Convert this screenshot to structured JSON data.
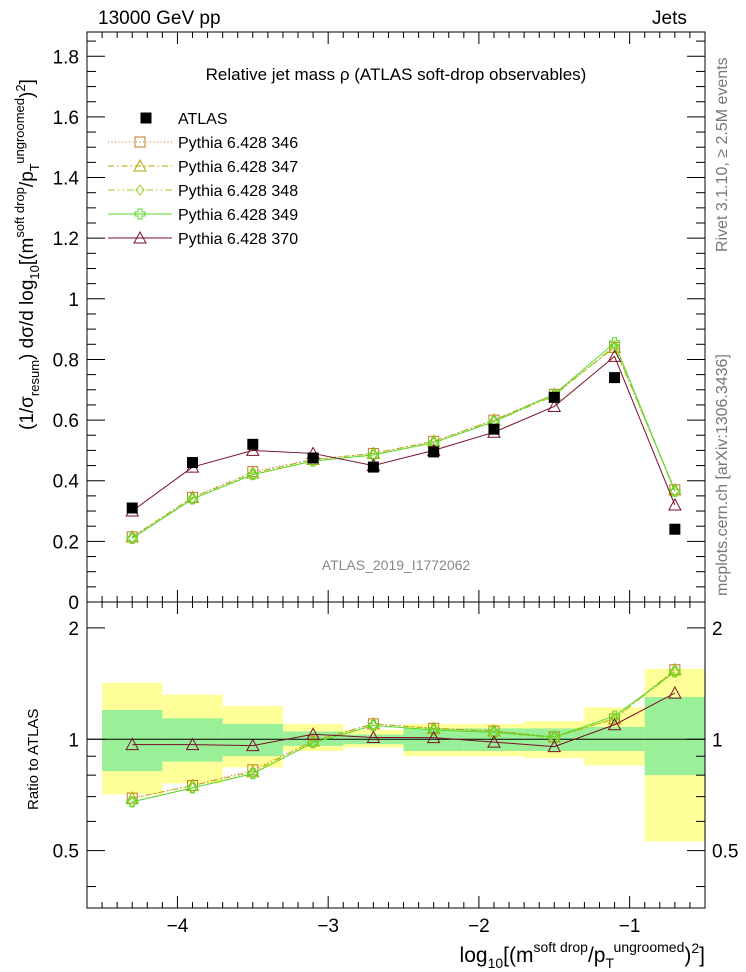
{
  "header": {
    "left": "13000 GeV pp",
    "right": "Jets"
  },
  "side_labels": {
    "rivet": "Rivet 3.1.10, ≥ 2.5M events",
    "mcplots": "mcplots.cern.ch [arXiv:1306.3436]"
  },
  "chart_data": {
    "type": "scatter",
    "title": "Relative jet mass  ρ (ATLAS soft-drop observables)",
    "watermark": "ATLAS_2019_I1772062",
    "ylabel_main": "(1/σresum) dσ/d log10[(m soft drop/pT ungroomed)2]",
    "ylabel_ratio": "Ratio to ATLAS",
    "xlabel": "log10[(m soft drop/pT ungroomed)2]",
    "xlim": [
      -4.6,
      -0.5
    ],
    "ylim_main": [
      0,
      1.88
    ],
    "ylim_ratio": [
      0.35,
      2.35
    ],
    "x_ticks": [
      "−4",
      "−3",
      "−2",
      "−1"
    ],
    "y_ticks_main": [
      "0",
      "0.2",
      "0.4",
      "0.6",
      "0.8",
      "1",
      "1.2",
      "1.4",
      "1.6",
      "1.8"
    ],
    "y_ticks_ratio": [
      "0.5",
      "1",
      "2"
    ],
    "x": [
      -4.3,
      -3.9,
      -3.5,
      -3.1,
      -2.7,
      -2.3,
      -1.9,
      -1.5,
      -1.1,
      -0.7
    ],
    "bin_edges": [
      -4.5,
      -4.1,
      -3.7,
      -3.3,
      -2.9,
      -2.5,
      -2.1,
      -1.7,
      -1.3,
      -0.9,
      -0.5
    ],
    "atlas": {
      "name": "ATLAS",
      "values": [
        0.31,
        0.46,
        0.52,
        0.475,
        0.445,
        0.495,
        0.57,
        0.675,
        0.74,
        0.24
      ],
      "band_inner": [
        [
          0.82,
          1.2
        ],
        [
          0.87,
          1.14
        ],
        [
          0.9,
          1.1
        ],
        [
          0.96,
          1.05
        ],
        [
          0.97,
          1.03
        ],
        [
          0.93,
          1.07
        ],
        [
          0.93,
          1.07
        ],
        [
          0.93,
          1.07
        ],
        [
          0.93,
          1.08
        ],
        [
          0.8,
          1.3
        ]
      ],
      "band_outer": [
        [
          0.71,
          1.42
        ],
        [
          0.76,
          1.32
        ],
        [
          0.84,
          1.23
        ],
        [
          0.93,
          1.1
        ],
        [
          0.95,
          1.06
        ],
        [
          0.9,
          1.1
        ],
        [
          0.9,
          1.1
        ],
        [
          0.89,
          1.12
        ],
        [
          0.85,
          1.22
        ],
        [
          0.53,
          1.55
        ]
      ]
    },
    "series": [
      {
        "name": "Pythia 6.428 346",
        "color": "#c07a2a",
        "dash": "1,2.5",
        "marker": "square",
        "values": [
          0.215,
          0.345,
          0.43,
          0.47,
          0.49,
          0.53,
          0.6,
          0.685,
          0.84,
          0.37
        ]
      },
      {
        "name": "Pythia 6.428 347",
        "color": "#b3a600",
        "dash": "6,3,1.5,3",
        "marker": "triangle",
        "values": [
          0.215,
          0.345,
          0.425,
          0.47,
          0.49,
          0.53,
          0.6,
          0.685,
          0.84,
          0.37
        ]
      },
      {
        "name": "Pythia 6.428 348",
        "color": "#9ad22a",
        "dash": "7,3,1.5,3,1.5,3",
        "marker": "diamond",
        "values": [
          0.21,
          0.34,
          0.42,
          0.465,
          0.485,
          0.525,
          0.595,
          0.68,
          0.845,
          0.365
        ]
      },
      {
        "name": "Pythia 6.428 349",
        "color": "#5ad82a",
        "dash": "",
        "marker": "cross",
        "values": [
          0.21,
          0.34,
          0.42,
          0.465,
          0.485,
          0.525,
          0.595,
          0.685,
          0.855,
          0.365
        ]
      },
      {
        "name": "Pythia 6.428 370",
        "color": "#7a0f28",
        "dash": "",
        "marker": "triangle",
        "values": [
          0.3,
          0.445,
          0.5,
          0.49,
          0.45,
          0.5,
          0.56,
          0.645,
          0.81,
          0.32
        ]
      }
    ]
  },
  "colors": {
    "band_inner": "#99f099",
    "band_outer": "#ffff99",
    "atlas_marker": "#000000"
  }
}
